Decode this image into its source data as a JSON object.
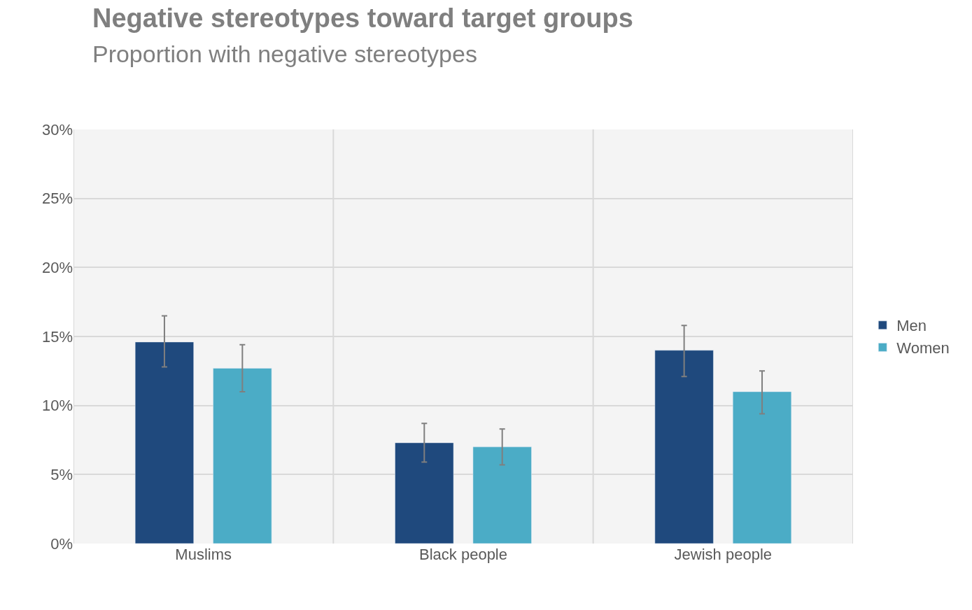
{
  "chart_data": {
    "type": "bar",
    "title": "Negative stereotypes toward target groups",
    "subtitle": "Proportion with negative stereotypes",
    "categories": [
      "Muslims",
      "Black people",
      "Jewish people"
    ],
    "series": [
      {
        "name": "Men",
        "color": "#1f497d",
        "values": [
          14.6,
          7.3,
          14.0
        ],
        "errors": [
          [
            12.8,
            16.5
          ],
          [
            5.9,
            8.7
          ],
          [
            12.1,
            15.8
          ]
        ]
      },
      {
        "name": "Women",
        "color": "#4bacc6",
        "values": [
          12.7,
          7.0,
          11.0
        ],
        "errors": [
          [
            11.0,
            14.4
          ],
          [
            5.7,
            8.3
          ],
          [
            9.4,
            12.5
          ]
        ]
      }
    ],
    "ylim": [
      0,
      30
    ],
    "yticks": [
      {
        "value": 0,
        "label": "0%"
      },
      {
        "value": 5,
        "label": "5%"
      },
      {
        "value": 10,
        "label": "10%"
      },
      {
        "value": 15,
        "label": "15%"
      },
      {
        "value": 20,
        "label": "20%"
      },
      {
        "value": 25,
        "label": "25%"
      },
      {
        "value": 30,
        "label": "30%"
      }
    ],
    "grid": true,
    "legend": "right"
  }
}
